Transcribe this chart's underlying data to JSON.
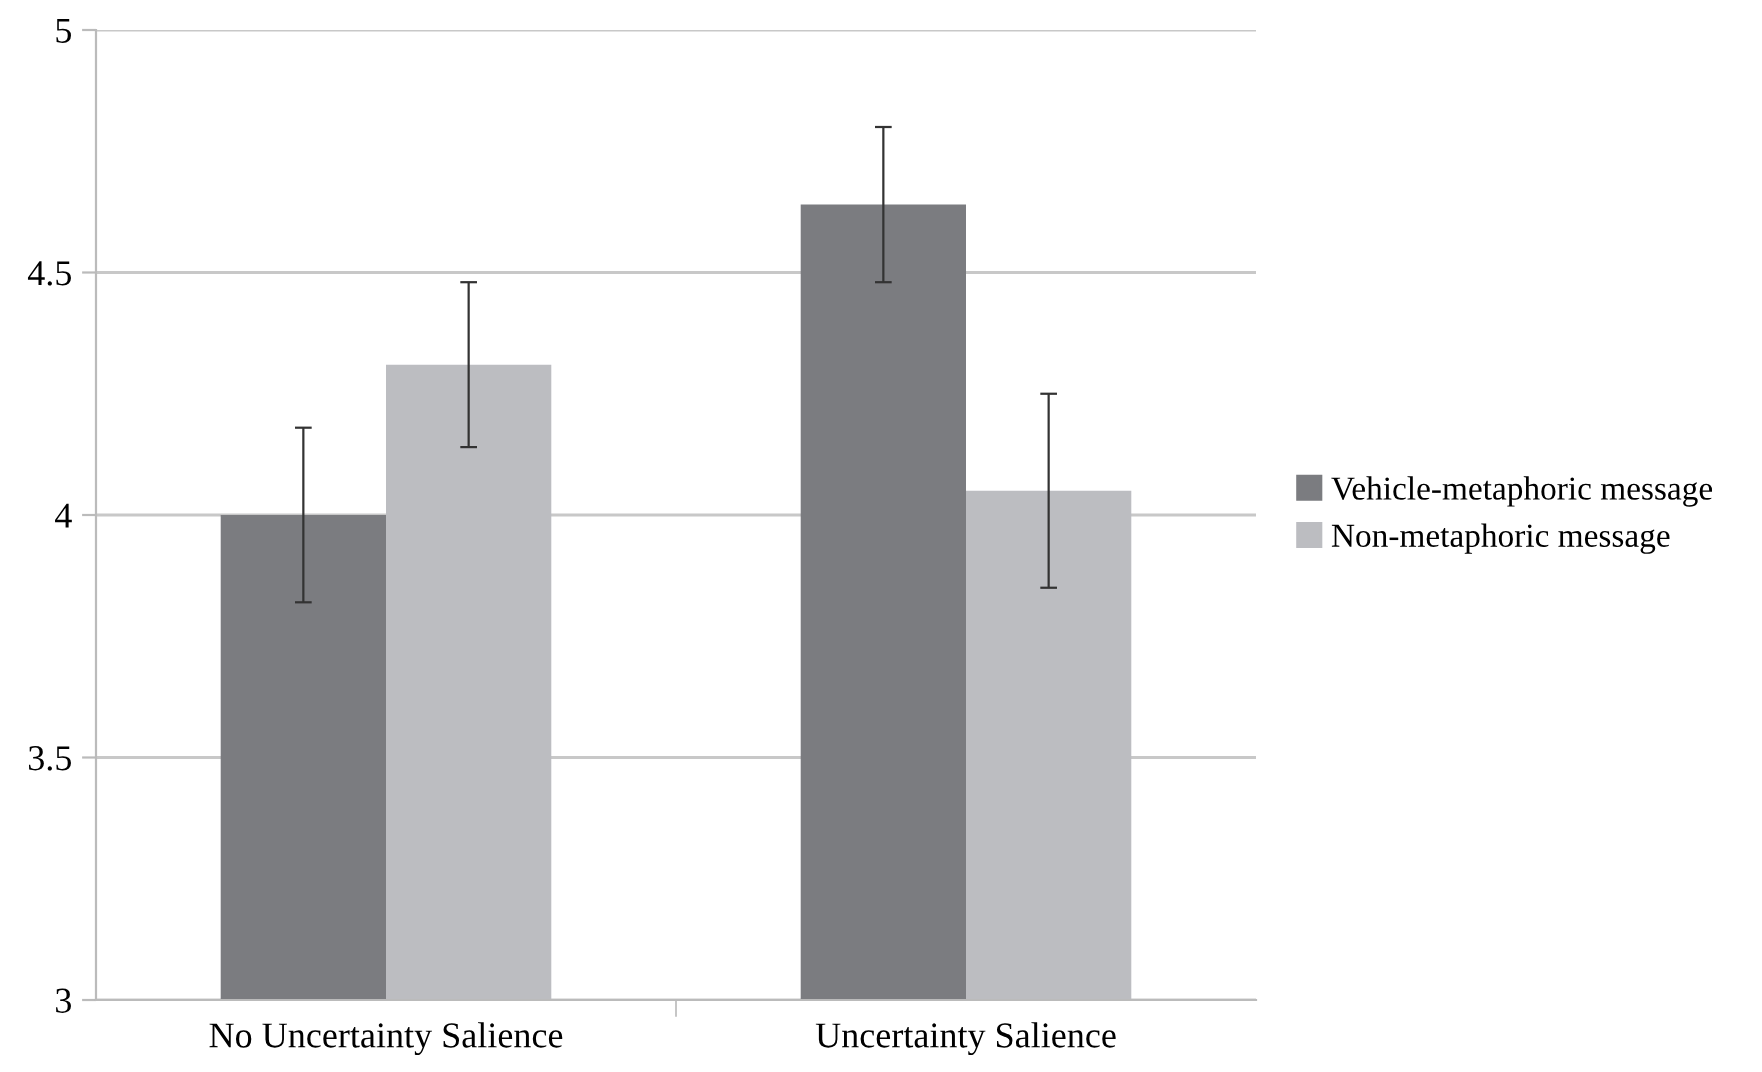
{
  "chart_data": {
    "type": "bar",
    "categories": [
      "No Uncertainty Salience",
      "Uncertainty Salience"
    ],
    "series": [
      {
        "name": "Vehicle-metaphoric message",
        "color": "#7b7c80",
        "values": [
          4.0,
          4.64
        ],
        "errors": [
          0.18,
          0.16
        ]
      },
      {
        "name": "Non-metaphoric message",
        "color": "#bcbdc1",
        "values": [
          4.31,
          4.05
        ],
        "errors": [
          0.17,
          0.2
        ]
      }
    ],
    "ylim": [
      3,
      5
    ],
    "yticks": [
      3,
      3.5,
      4,
      4.5,
      5
    ],
    "grid": "y",
    "legend": "right"
  }
}
